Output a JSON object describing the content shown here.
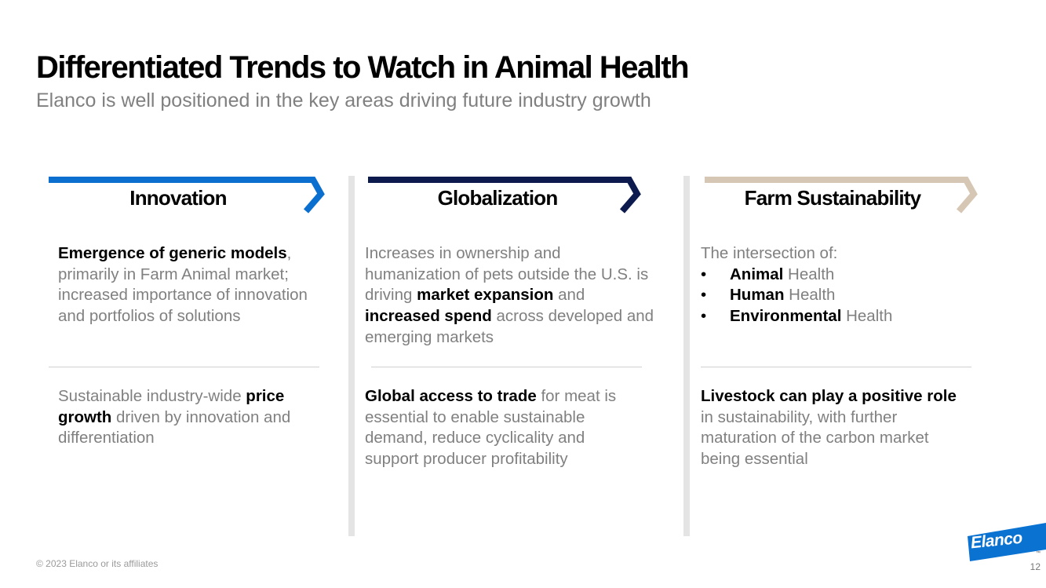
{
  "header": {
    "title": "Differentiated Trends to Watch in Animal Health",
    "subtitle": "Elanco is well positioned in the key areas driving future industry growth"
  },
  "colors": {
    "innovation": "#0a6fcf",
    "globalization": "#0c1a4e",
    "farm": "#d6c7b4",
    "divider": "#e4e4e4",
    "logo": "#0a72d1"
  },
  "columns": [
    {
      "title": "Innovation",
      "top": {
        "b1": "Emergence of generic models",
        "t1": ", primarily in Farm Animal market; increased importance of innovation and portfolios of solutions"
      },
      "bottom": {
        "t1": "Sustainable industry-wide  ",
        "b1": "price growth",
        "t2": " driven by  innovation and differentiation"
      }
    },
    {
      "title": "Globalization",
      "top": {
        "t1": "Increases in ownership and humanization of pets outside the U.S. is driving ",
        "b1": "market expansion",
        "t2": " and ",
        "b2": "increased spend",
        "t3": " across developed and emerging markets"
      },
      "bottom": {
        "b1": "Global access to trade",
        "t1": " for meat is essential to enable sustainable demand, reduce cyclicality and support producer profitability"
      }
    },
    {
      "title": "Farm Sustainability",
      "top": {
        "intro": "The intersection of:",
        "bullet_char": "•",
        "bullets": [
          {
            "bold": "Animal",
            "rest": " Health"
          },
          {
            "bold": "Human",
            "rest": " Health"
          },
          {
            "bold": "Environmental",
            "rest": " Health"
          }
        ]
      },
      "bottom": {
        "b1": "Livestock can play a positive role",
        "t1": " in sustainability, with further maturation of the carbon market being essential"
      }
    }
  ],
  "footer": {
    "copyright": "© 2023 Elanco or its affiliates",
    "page_number": "12",
    "logo_text": "Elanco",
    "tm": "™"
  }
}
